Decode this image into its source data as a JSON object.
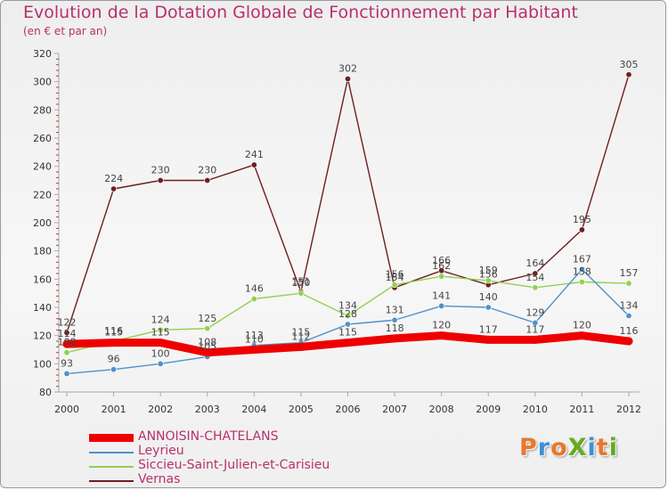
{
  "title": "Evolution de la Dotation Globale de Fonctionnement par Habitant",
  "subtitle": "(en € et par an)",
  "logo": {
    "text": "ProXiti",
    "letters": [
      "P",
      "r",
      "o",
      "X",
      "i",
      "t",
      "i"
    ],
    "colors": [
      "#e7782b",
      "#3d8fd6",
      "#e7782b",
      "#66aa22",
      "#3d8fd6",
      "#e7782b",
      "#66aa22"
    ]
  },
  "chart_data": {
    "type": "line",
    "title": "Evolution de la Dotation Globale de Fonctionnement par Habitant",
    "subtitle": "(en € et par an)",
    "xlabel": "",
    "ylabel": "",
    "ylim": [
      80,
      320
    ],
    "yticks": [
      80,
      100,
      120,
      140,
      160,
      180,
      200,
      220,
      240,
      260,
      280,
      300,
      320
    ],
    "grid": false,
    "legend_position": "bottom-left",
    "categories": [
      "2000",
      "2001",
      "2002",
      "2003",
      "2004",
      "2005",
      "2006",
      "2007",
      "2008",
      "2009",
      "2010",
      "2011",
      "2012"
    ],
    "series": [
      {
        "name": "ANNOISIN-CHATELANS",
        "color": "#ee0000",
        "style": "thick",
        "values": [
          114,
          115,
          115,
          108,
          110,
          112,
          115,
          118,
          120,
          117,
          117,
          120,
          116
        ],
        "labels": [
          "114",
          "115",
          "115",
          "108",
          "110",
          "112",
          "115",
          "118",
          "120",
          "117",
          "117",
          "120",
          "116"
        ]
      },
      {
        "name": "Leyrieu",
        "color": "#4d92cc",
        "values": [
          93,
          96,
          100,
          105,
          113,
          115,
          128,
          131,
          141,
          140,
          129,
          167,
          134
        ],
        "labels": [
          "93",
          "96",
          "100",
          "105",
          "113",
          "115",
          "128",
          "131",
          "141",
          "140",
          "129",
          "167",
          "134"
        ]
      },
      {
        "name": "Siccieu-Saint-Julien-et-Carisieu",
        "color": "#92d050",
        "values": [
          108,
          116,
          124,
          125,
          146,
          150,
          134,
          156,
          162,
          159,
          154,
          158,
          157
        ],
        "labels": [
          "108",
          "116",
          "124",
          "125",
          "146",
          "150",
          "134",
          "156",
          "162",
          "159",
          "154",
          "158",
          "157"
        ]
      },
      {
        "name": "Vernas",
        "color": "#6e1f1f",
        "values": [
          122,
          224,
          230,
          230,
          241,
          151,
          302,
          154,
          166,
          156,
          164,
          195,
          305
        ],
        "labels": [
          "122",
          "224",
          "230",
          "230",
          "241",
          "151",
          "302",
          "154",
          "166",
          "156",
          "164",
          "195",
          "305"
        ]
      }
    ]
  }
}
